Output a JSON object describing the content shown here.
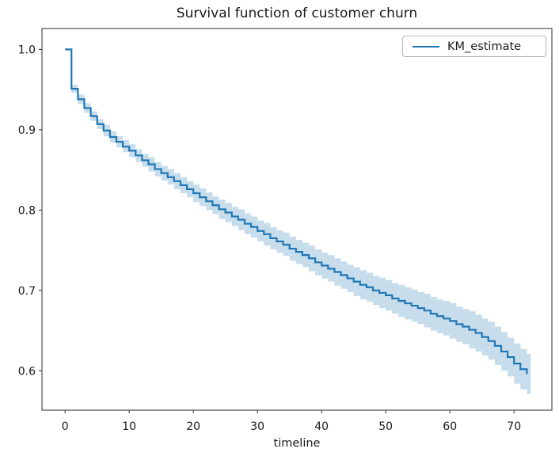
{
  "figure": {
    "title": "Survival function of customer churn",
    "xlabel": "timeline",
    "legend_label": "KM_estimate"
  },
  "colors": {
    "line": "#1f77b4",
    "band": "#1f77b4",
    "band_opacity": 0.25,
    "text": "#1a1a1a",
    "spine": "#2b2b2b",
    "legend_border": "#b4b4b4",
    "background": "#ffffff"
  },
  "chart_data": {
    "type": "line",
    "style": "steps-post",
    "title": "Survival function of customer churn",
    "xlabel": "timeline",
    "ylabel": "",
    "legend": [
      "KM_estimate"
    ],
    "legend_position": "upper right",
    "grid": false,
    "xlim": [
      -3.6,
      75.9
    ],
    "ylim": [
      0.551,
      1.026
    ],
    "band_x_end": 72.6,
    "x_ticks": [
      {
        "value": 0,
        "label": "0"
      },
      {
        "value": 10,
        "label": "10"
      },
      {
        "value": 20,
        "label": "20"
      },
      {
        "value": 30,
        "label": "30"
      },
      {
        "value": 40,
        "label": "40"
      },
      {
        "value": 50,
        "label": "50"
      },
      {
        "value": 60,
        "label": "60"
      },
      {
        "value": 70,
        "label": "70"
      }
    ],
    "y_ticks": [
      {
        "value": 1.0,
        "label": "1.0"
      },
      {
        "value": 0.9,
        "label": "0.9"
      },
      {
        "value": 0.8,
        "label": "0.8"
      },
      {
        "value": 0.7,
        "label": "0.7"
      },
      {
        "value": 0.6,
        "label": "0.6"
      }
    ],
    "x": [
      0,
      1,
      2,
      3,
      4,
      5,
      6,
      7,
      8,
      9,
      10,
      11,
      12,
      13,
      14,
      15,
      16,
      17,
      18,
      19,
      20,
      21,
      22,
      23,
      24,
      25,
      26,
      27,
      28,
      29,
      30,
      31,
      32,
      33,
      34,
      35,
      36,
      37,
      38,
      39,
      40,
      41,
      42,
      43,
      44,
      45,
      46,
      47,
      48,
      49,
      50,
      51,
      52,
      53,
      54,
      55,
      56,
      57,
      58,
      59,
      60,
      61,
      62,
      63,
      64,
      65,
      66,
      67,
      68,
      69,
      70,
      71,
      72
    ],
    "y": [
      1.0,
      0.951,
      0.938,
      0.927,
      0.917,
      0.907,
      0.899,
      0.891,
      0.885,
      0.879,
      0.874,
      0.868,
      0.862,
      0.857,
      0.851,
      0.846,
      0.841,
      0.836,
      0.831,
      0.826,
      0.821,
      0.816,
      0.811,
      0.806,
      0.801,
      0.797,
      0.792,
      0.788,
      0.783,
      0.779,
      0.774,
      0.77,
      0.765,
      0.761,
      0.757,
      0.752,
      0.748,
      0.744,
      0.74,
      0.735,
      0.731,
      0.727,
      0.723,
      0.719,
      0.715,
      0.711,
      0.707,
      0.704,
      0.7,
      0.697,
      0.694,
      0.69,
      0.687,
      0.684,
      0.681,
      0.678,
      0.675,
      0.671,
      0.668,
      0.665,
      0.662,
      0.658,
      0.655,
      0.651,
      0.647,
      0.642,
      0.637,
      0.631,
      0.624,
      0.617,
      0.609,
      0.602,
      0.596
    ],
    "ci_lower": [
      1.0,
      0.946,
      0.932,
      0.921,
      0.911,
      0.901,
      0.892,
      0.884,
      0.878,
      0.872,
      0.866,
      0.86,
      0.854,
      0.848,
      0.842,
      0.837,
      0.832,
      0.826,
      0.821,
      0.816,
      0.81,
      0.805,
      0.8,
      0.795,
      0.789,
      0.785,
      0.78,
      0.775,
      0.77,
      0.766,
      0.761,
      0.756,
      0.751,
      0.747,
      0.743,
      0.737,
      0.733,
      0.729,
      0.724,
      0.719,
      0.715,
      0.711,
      0.706,
      0.702,
      0.698,
      0.693,
      0.689,
      0.686,
      0.682,
      0.678,
      0.675,
      0.671,
      0.667,
      0.664,
      0.661,
      0.658,
      0.654,
      0.65,
      0.647,
      0.644,
      0.64,
      0.636,
      0.633,
      0.628,
      0.624,
      0.619,
      0.614,
      0.607,
      0.6,
      0.593,
      0.584,
      0.577,
      0.571
    ],
    "ci_upper": [
      1.0,
      0.956,
      0.944,
      0.933,
      0.923,
      0.913,
      0.906,
      0.898,
      0.892,
      0.887,
      0.882,
      0.876,
      0.87,
      0.866,
      0.86,
      0.855,
      0.851,
      0.846,
      0.841,
      0.836,
      0.832,
      0.827,
      0.822,
      0.817,
      0.813,
      0.809,
      0.804,
      0.801,
      0.796,
      0.792,
      0.787,
      0.784,
      0.779,
      0.775,
      0.772,
      0.767,
      0.763,
      0.759,
      0.756,
      0.751,
      0.747,
      0.744,
      0.74,
      0.736,
      0.732,
      0.729,
      0.725,
      0.722,
      0.718,
      0.716,
      0.713,
      0.709,
      0.707,
      0.704,
      0.701,
      0.698,
      0.696,
      0.692,
      0.689,
      0.687,
      0.684,
      0.68,
      0.677,
      0.674,
      0.67,
      0.665,
      0.661,
      0.655,
      0.648,
      0.641,
      0.634,
      0.627,
      0.621
    ]
  }
}
